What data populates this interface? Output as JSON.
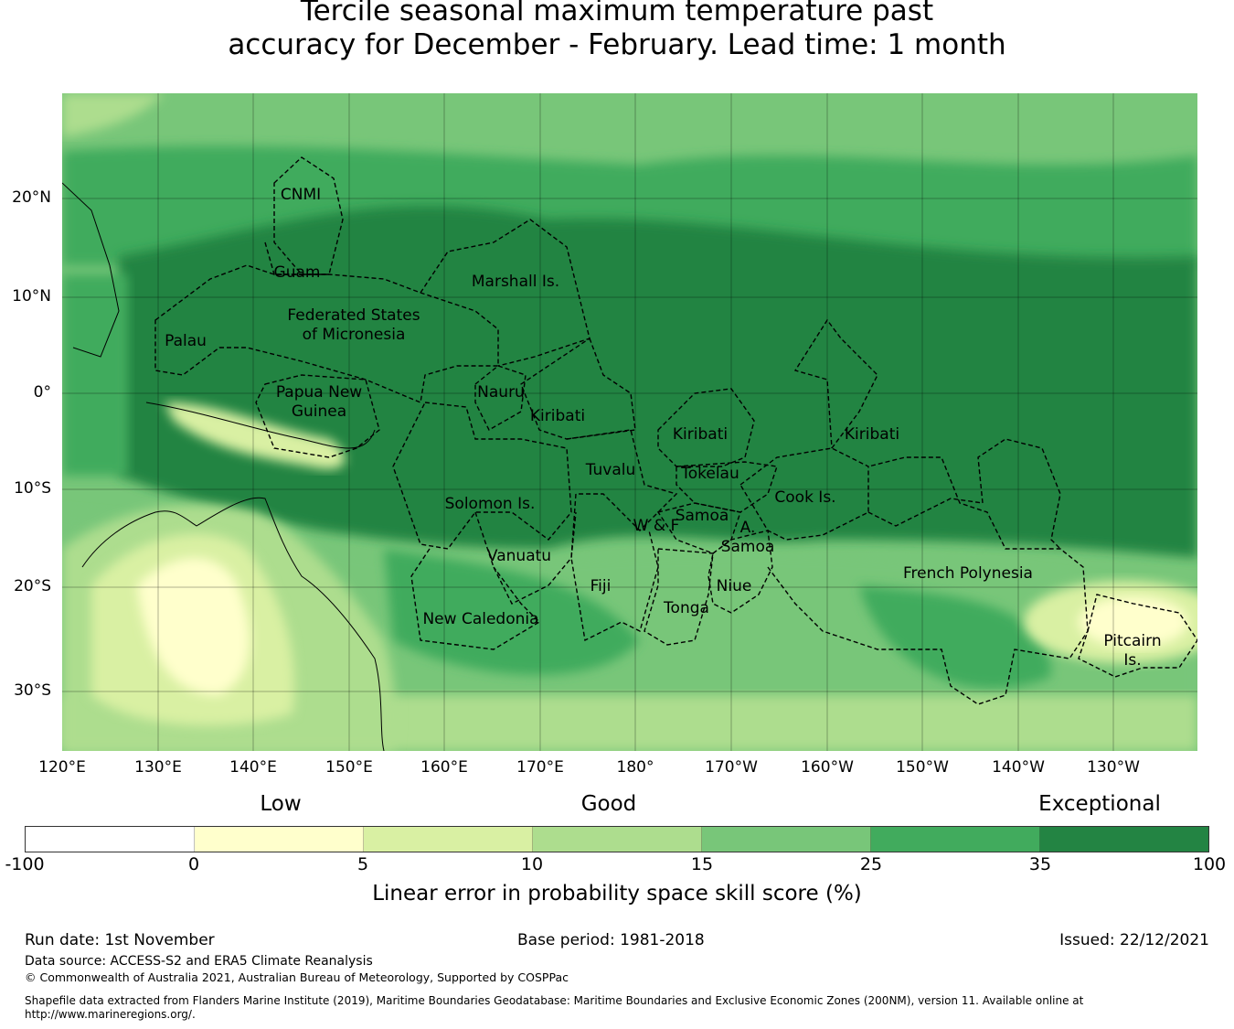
{
  "title": {
    "line1": "Tercile seasonal maximum temperature past",
    "line2": "accuracy for December - February. Lead time: 1 month"
  },
  "map": {
    "lat_ticks": [
      "20°N",
      "10°N",
      "0°",
      "10°S",
      "20°S",
      "30°S"
    ],
    "lon_ticks": [
      "120°E",
      "130°E",
      "140°E",
      "150°E",
      "160°E",
      "170°E",
      "180°",
      "170°W",
      "160°W",
      "150°W",
      "140°W",
      "130°W"
    ],
    "regions": [
      {
        "name": "CNMI"
      },
      {
        "name": "Guam"
      },
      {
        "name": "Marshall Is."
      },
      {
        "name": "Federated States"
      },
      {
        "name": "of Micronesia"
      },
      {
        "name": "Palau"
      },
      {
        "name": "Papua New"
      },
      {
        "name": "Guinea"
      },
      {
        "name": "Nauru"
      },
      {
        "name": "Kiribati"
      },
      {
        "name": "Kiribati"
      },
      {
        "name": "Kiribati"
      },
      {
        "name": "Tuvalu"
      },
      {
        "name": "Tokelau"
      },
      {
        "name": "Cook Is."
      },
      {
        "name": "Solomon Is."
      },
      {
        "name": "W & F"
      },
      {
        "name": "Samoa"
      },
      {
        "name": "A."
      },
      {
        "name": "Samoa"
      },
      {
        "name": "Vanuatu"
      },
      {
        "name": "Fiji"
      },
      {
        "name": "Niue"
      },
      {
        "name": "Tonga"
      },
      {
        "name": "French Polynesia"
      },
      {
        "name": "New Caledonia"
      },
      {
        "name": "Pitcairn"
      },
      {
        "name": "Is."
      }
    ]
  },
  "legend": {
    "categories": [
      "Low",
      "Good",
      "Exceptional"
    ],
    "colors": [
      "#ffffff",
      "#ffffcc",
      "#d9f0a3",
      "#addd8e",
      "#78c679",
      "#41ab5d",
      "#238443"
    ],
    "ticks": [
      "-100",
      "0",
      "5",
      "10",
      "15",
      "25",
      "35",
      "100"
    ],
    "label": "Linear error in probability space skill score (%)"
  },
  "footer": {
    "run_date": "Run date: 1st November",
    "base_period": "Base period: 1981-2018",
    "issued": "Issued: 22/12/2021",
    "data_source": "Data source: ACCESS-S2 and ERA5 Climate Reanalysis",
    "copyright": "© Commonwealth of Australia 2021, Australian Bureau of Meteorology, Supported by COSPPac",
    "shapefile_note": "Shapefile data extracted from Flanders Marine Institute (2019), Maritime Boundaries Geodatabase: Maritime Boundaries and Exclusive Economic Zones (200NM), version 11. Available online at http://www.marineregions.org/."
  }
}
